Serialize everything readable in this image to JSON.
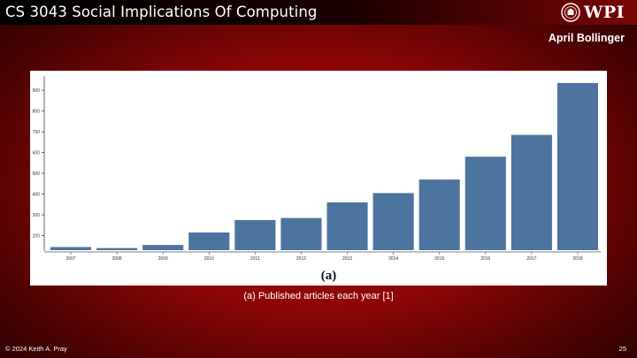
{
  "slide": {
    "title": "CS 3043 Social Implications Of Computing",
    "logo_text": "WPI",
    "author": "April Bollinger",
    "caption": "(a) Published articles each year [1]",
    "footer_copyright": "© 2024 Keith A. Pray",
    "page_number": "25"
  },
  "colors": {
    "bar": "#4d749e",
    "accent": "#9e0606"
  },
  "chart_data": {
    "type": "bar",
    "title": "",
    "xlabel": "",
    "ylabel": "",
    "panel_label": "(a)",
    "categories": [
      "2007",
      "2008",
      "2009",
      "2010",
      "2011",
      "2012",
      "2013",
      "2014",
      "2015",
      "2016",
      "2017",
      "2018"
    ],
    "values": [
      145,
      140,
      155,
      215,
      275,
      285,
      360,
      405,
      470,
      580,
      685,
      935
    ],
    "ylim": [
      130,
      960
    ],
    "yticks": [
      200,
      300,
      400,
      500,
      600,
      700,
      800,
      900
    ]
  }
}
